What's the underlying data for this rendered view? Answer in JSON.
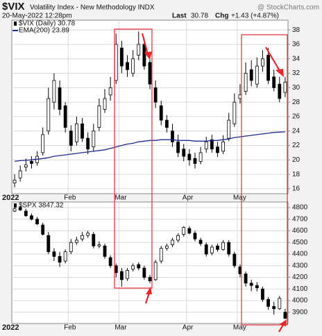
{
  "header": {
    "symbol": "$VIX",
    "name": "Volatility Index - New Methodology INDX",
    "source": "@ StockCharts.com",
    "date": "20-May-2022 12:28pm",
    "last_label": "Last",
    "last": "30.78",
    "chg_label": "Chg",
    "chg": "+1.43 (+4.87%)"
  },
  "chart_data": [
    {
      "type": "candlestick",
      "categories": [
        "2022",
        null,
        null,
        null,
        null,
        null,
        null,
        null,
        null,
        null,
        "Feb",
        null,
        null,
        null,
        null,
        null,
        null,
        null,
        null,
        "Mar",
        null,
        null,
        null,
        null,
        null,
        null,
        null,
        null,
        null,
        null,
        null,
        "Apr",
        null,
        null,
        null,
        null,
        null,
        null,
        null,
        null,
        "May",
        null,
        null,
        null,
        null,
        null,
        null,
        null,
        null
      ],
      "series": [
        {
          "name": "$VIX (Daily) 30.78",
          "color": "#000000",
          "open": [
            16.8,
            17.5,
            19.0,
            19.8,
            19.6,
            21,
            24,
            28,
            30,
            27.5,
            24,
            22.5,
            25,
            23,
            21.8,
            24.5,
            27,
            29,
            31,
            35.5,
            33.5,
            32,
            34.5,
            36,
            33.5,
            30,
            27.5,
            25.5,
            24,
            22.5,
            21.5,
            20.8,
            20.2,
            19.8,
            21.5,
            22.8,
            21.8,
            21.2,
            23,
            25,
            28.5,
            29.5,
            32.5,
            30.5,
            33,
            34.5,
            31.5,
            30.5,
            29.35
          ],
          "high": [
            18,
            19.2,
            20.2,
            20.5,
            21.2,
            24.5,
            30,
            32,
            31,
            28,
            24.8,
            26,
            25.8,
            23.8,
            25,
            28.5,
            29.8,
            31.5,
            37.5,
            36.5,
            34.5,
            35.2,
            37.8,
            36.8,
            34.2,
            31,
            28.2,
            26.2,
            25,
            23.5,
            22.2,
            21.5,
            21,
            21.8,
            23.2,
            23.5,
            22.5,
            23.4,
            26.5,
            29.2,
            30.5,
            33.5,
            33.8,
            34.2,
            35.2,
            35.5,
            32.5,
            31.5,
            31.5
          ],
          "low": [
            16.2,
            17,
            18.4,
            18.8,
            19.2,
            20.6,
            23.5,
            27,
            26.2,
            23.8,
            21.2,
            22,
            22.5,
            20.8,
            21.2,
            24,
            26.5,
            28.2,
            30.5,
            32,
            31.5,
            31.5,
            33.8,
            32.5,
            29.8,
            27.2,
            24.8,
            23.8,
            21.8,
            20.4,
            19.8,
            19.2,
            18.8,
            19.4,
            21,
            21,
            20.4,
            20.8,
            22.6,
            24.6,
            27.8,
            29,
            30.2,
            30,
            32.2,
            30.5,
            29.5,
            28,
            28.7
          ],
          "close": [
            17.2,
            18.5,
            19.3,
            19.5,
            20.5,
            23.5,
            28.5,
            31,
            27,
            24.5,
            22,
            25,
            23,
            21.5,
            24,
            27.5,
            28.5,
            30,
            36,
            33,
            32.5,
            34,
            36,
            33,
            30.5,
            28,
            25.5,
            24.5,
            22.5,
            21,
            20.5,
            20,
            19.5,
            21,
            22.5,
            21.5,
            21,
            22.5,
            25.5,
            28,
            29,
            32,
            31,
            33,
            34,
            31,
            30,
            28.5,
            30.78
          ]
        },
        {
          "name": "EMA(200) 23.89",
          "color": "#1a2a8a",
          "values": [
            19.8,
            19.9,
            19.95,
            20.0,
            20.1,
            20.2,
            20.3,
            20.5,
            20.6,
            20.7,
            20.8,
            20.9,
            21.0,
            21.1,
            21.2,
            21.3,
            21.4,
            21.6,
            21.8,
            22.0,
            22.2,
            22.3,
            22.5,
            22.6,
            22.7,
            22.7,
            22.8,
            22.8,
            22.8,
            22.7,
            22.7,
            22.7,
            22.6,
            22.6,
            22.6,
            22.7,
            22.7,
            22.8,
            22.9,
            23.1,
            23.2,
            23.3,
            23.4,
            23.5,
            23.6,
            23.7,
            23.8,
            23.85,
            23.89
          ]
        }
      ],
      "ylim": [
        15.32,
        39.36
      ],
      "yticks": [
        16,
        18,
        20,
        22,
        24,
        26,
        28,
        30,
        32,
        34,
        36,
        38
      ],
      "grid": true
    },
    {
      "type": "candlestick",
      "categories": [
        "2022",
        null,
        null,
        null,
        null,
        null,
        null,
        null,
        null,
        null,
        "Feb",
        null,
        null,
        null,
        null,
        null,
        null,
        null,
        null,
        "Mar",
        null,
        null,
        null,
        null,
        null,
        null,
        null,
        null,
        null,
        null,
        null,
        "Apr",
        null,
        null,
        null,
        null,
        null,
        null,
        null,
        null,
        "May",
        null,
        null,
        null,
        null,
        null,
        null,
        null,
        null
      ],
      "series": [
        {
          "name": "$SPX 3847.32",
          "color": "#000000",
          "open": [
            4770,
            4800,
            4770,
            4730,
            4700,
            4650,
            4560,
            4420,
            4380,
            4340,
            4420,
            4500,
            4530,
            4560,
            4570,
            4470,
            4470,
            4370,
            4300,
            4250,
            4190,
            4270,
            4310,
            4280,
            4200,
            4180,
            4340,
            4450,
            4480,
            4520,
            4570,
            4620,
            4580,
            4520,
            4480,
            4410,
            4470,
            4440,
            4500,
            4400,
            4290,
            4230,
            4150,
            4130,
            4100,
            4010,
            3950,
            3930,
            3900
          ],
          "high": [
            4810,
            4815,
            4790,
            4750,
            4720,
            4670,
            4590,
            4450,
            4420,
            4440,
            4530,
            4550,
            4590,
            4600,
            4590,
            4510,
            4490,
            4390,
            4320,
            4280,
            4280,
            4320,
            4330,
            4300,
            4220,
            4350,
            4470,
            4490,
            4540,
            4580,
            4640,
            4640,
            4600,
            4540,
            4500,
            4480,
            4490,
            4520,
            4520,
            4420,
            4310,
            4250,
            4180,
            4160,
            4120,
            4030,
            3990,
            4040,
            3930
          ],
          "low": [
            4760,
            4770,
            4720,
            4690,
            4650,
            4560,
            4400,
            4340,
            4290,
            4320,
            4400,
            4480,
            4510,
            4540,
            4450,
            4450,
            4360,
            4280,
            4200,
            4120,
            4170,
            4250,
            4260,
            4180,
            4150,
            4170,
            4320,
            4430,
            4460,
            4500,
            4550,
            4570,
            4510,
            4470,
            4380,
            4390,
            4420,
            4430,
            4380,
            4280,
            4200,
            4120,
            4080,
            4080,
            3990,
            3920,
            3880,
            3920,
            3840
          ],
          "close": [
            4790,
            4780,
            4730,
            4700,
            4660,
            4570,
            4420,
            4380,
            4330,
            4420,
            4500,
            4520,
            4560,
            4580,
            4470,
            4480,
            4380,
            4300,
            4240,
            4180,
            4260,
            4300,
            4280,
            4200,
            4170,
            4330,
            4450,
            4470,
            4520,
            4560,
            4630,
            4580,
            4530,
            4490,
            4400,
            4460,
            4440,
            4500,
            4400,
            4300,
            4230,
            4150,
            4130,
            4110,
            4010,
            3950,
            3930,
            4020,
            3847.32
          ]
        }
      ],
      "ylim": [
        3803,
        4848
      ],
      "yticks": [
        3900,
        4000,
        4100,
        4200,
        4300,
        4400,
        4500,
        4600,
        4700,
        4800
      ],
      "grid": true
    }
  ]
}
